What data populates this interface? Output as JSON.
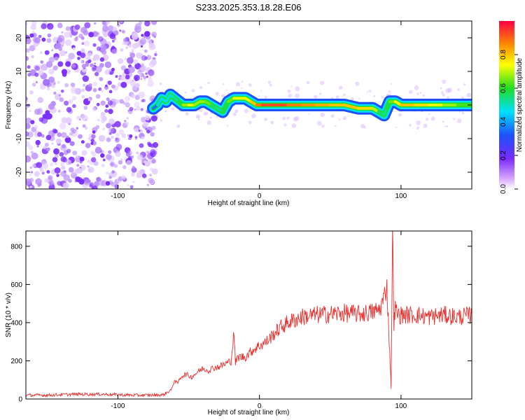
{
  "title": "S233.2025.353.18.28.E06",
  "colors": {
    "snr_line": "#e8302e",
    "frame": "#000000",
    "noise": "#8a2be2"
  },
  "chart_data": [
    {
      "type": "heatmap",
      "xlabel": "Height of straight line (km)",
      "ylabel": "Frequency (Hz)",
      "xlim": [
        -165,
        150
      ],
      "ylim": [
        -25,
        25
      ],
      "xticks": [
        -100,
        0,
        100
      ],
      "yticks": [
        -20,
        -10,
        0,
        10,
        20
      ],
      "grid": false,
      "colorbar": {
        "label": "Normalized spectral amplitude",
        "range": [
          0.0,
          1.0
        ],
        "ticks": [
          0.0,
          0.2,
          0.4,
          0.6,
          0.8
        ],
        "colormap": "rainbow (purple-blue-cyan-green-yellow-red)"
      },
      "ridge": {
        "x": [
          -75,
          -72,
          -69,
          -66,
          -63,
          -60,
          -57,
          -54,
          -50,
          -46,
          -42,
          -38,
          -34,
          -30,
          -26,
          -22,
          -18,
          -14,
          -10,
          -6,
          -2,
          2,
          10,
          20,
          30,
          40,
          50,
          60,
          70,
          76,
          80,
          84,
          88,
          90,
          92,
          96,
          100,
          110,
          120,
          130,
          140,
          150
        ],
        "y": [
          -1,
          0,
          2,
          1,
          3,
          2,
          1,
          0,
          0,
          0,
          1,
          1,
          0,
          -1,
          -2,
          1,
          2,
          2,
          2,
          1,
          0,
          0,
          0,
          0,
          0,
          0,
          0,
          0,
          -1,
          -1,
          -1,
          -2,
          -3,
          -1,
          1,
          1,
          0,
          0,
          0,
          0,
          0,
          0
        ],
        "amplitude": [
          0.3,
          0.4,
          0.5,
          0.45,
          0.5,
          0.5,
          0.55,
          0.6,
          0.75,
          0.7,
          0.65,
          0.7,
          0.6,
          0.5,
          0.55,
          0.6,
          0.7,
          0.75,
          0.7,
          0.75,
          0.85,
          0.9,
          0.95,
          0.9,
          0.85,
          0.85,
          0.8,
          0.8,
          0.8,
          0.75,
          0.8,
          0.6,
          0.5,
          0.55,
          0.6,
          0.7,
          0.8,
          0.8,
          0.75,
          0.7,
          0.65,
          0.6
        ]
      },
      "noise_region": {
        "x_range": [
          -165,
          -73
        ],
        "y_range": [
          -25,
          25
        ]
      }
    },
    {
      "type": "line",
      "xlabel": "Height of straight line (km)",
      "ylabel": "SNR (10 * v/v)",
      "xlim": [
        -165,
        150
      ],
      "ylim": [
        0,
        880
      ],
      "xticks": [
        -100,
        0,
        100
      ],
      "yticks": [
        0,
        200,
        400,
        600,
        800
      ],
      "grid": false,
      "series": [
        {
          "x": [
            -165,
            -150,
            -130,
            -110,
            -90,
            -75,
            -68,
            -62,
            -60,
            -58,
            -55,
            -52,
            -48,
            -44,
            -40,
            -36,
            -32,
            -28,
            -24,
            -20,
            -18,
            -17,
            -15,
            -10,
            -5,
            0,
            5,
            10,
            15,
            20,
            25,
            30,
            40,
            50,
            60,
            70,
            80,
            85,
            88,
            90,
            91,
            92,
            93,
            94,
            95,
            96,
            98,
            100,
            110,
            120,
            130,
            140,
            150
          ],
          "y": [
            20,
            20,
            25,
            25,
            20,
            20,
            22,
            50,
            100,
            80,
            120,
            130,
            115,
            140,
            160,
            150,
            165,
            170,
            185,
            200,
            350,
            190,
            220,
            220,
            255,
            280,
            300,
            340,
            375,
            400,
            415,
            430,
            440,
            445,
            450,
            445,
            455,
            470,
            530,
            600,
            420,
            250,
            60,
            880,
            400,
            470,
            440,
            440,
            440,
            430,
            440,
            430,
            440
          ]
        }
      ]
    }
  ]
}
